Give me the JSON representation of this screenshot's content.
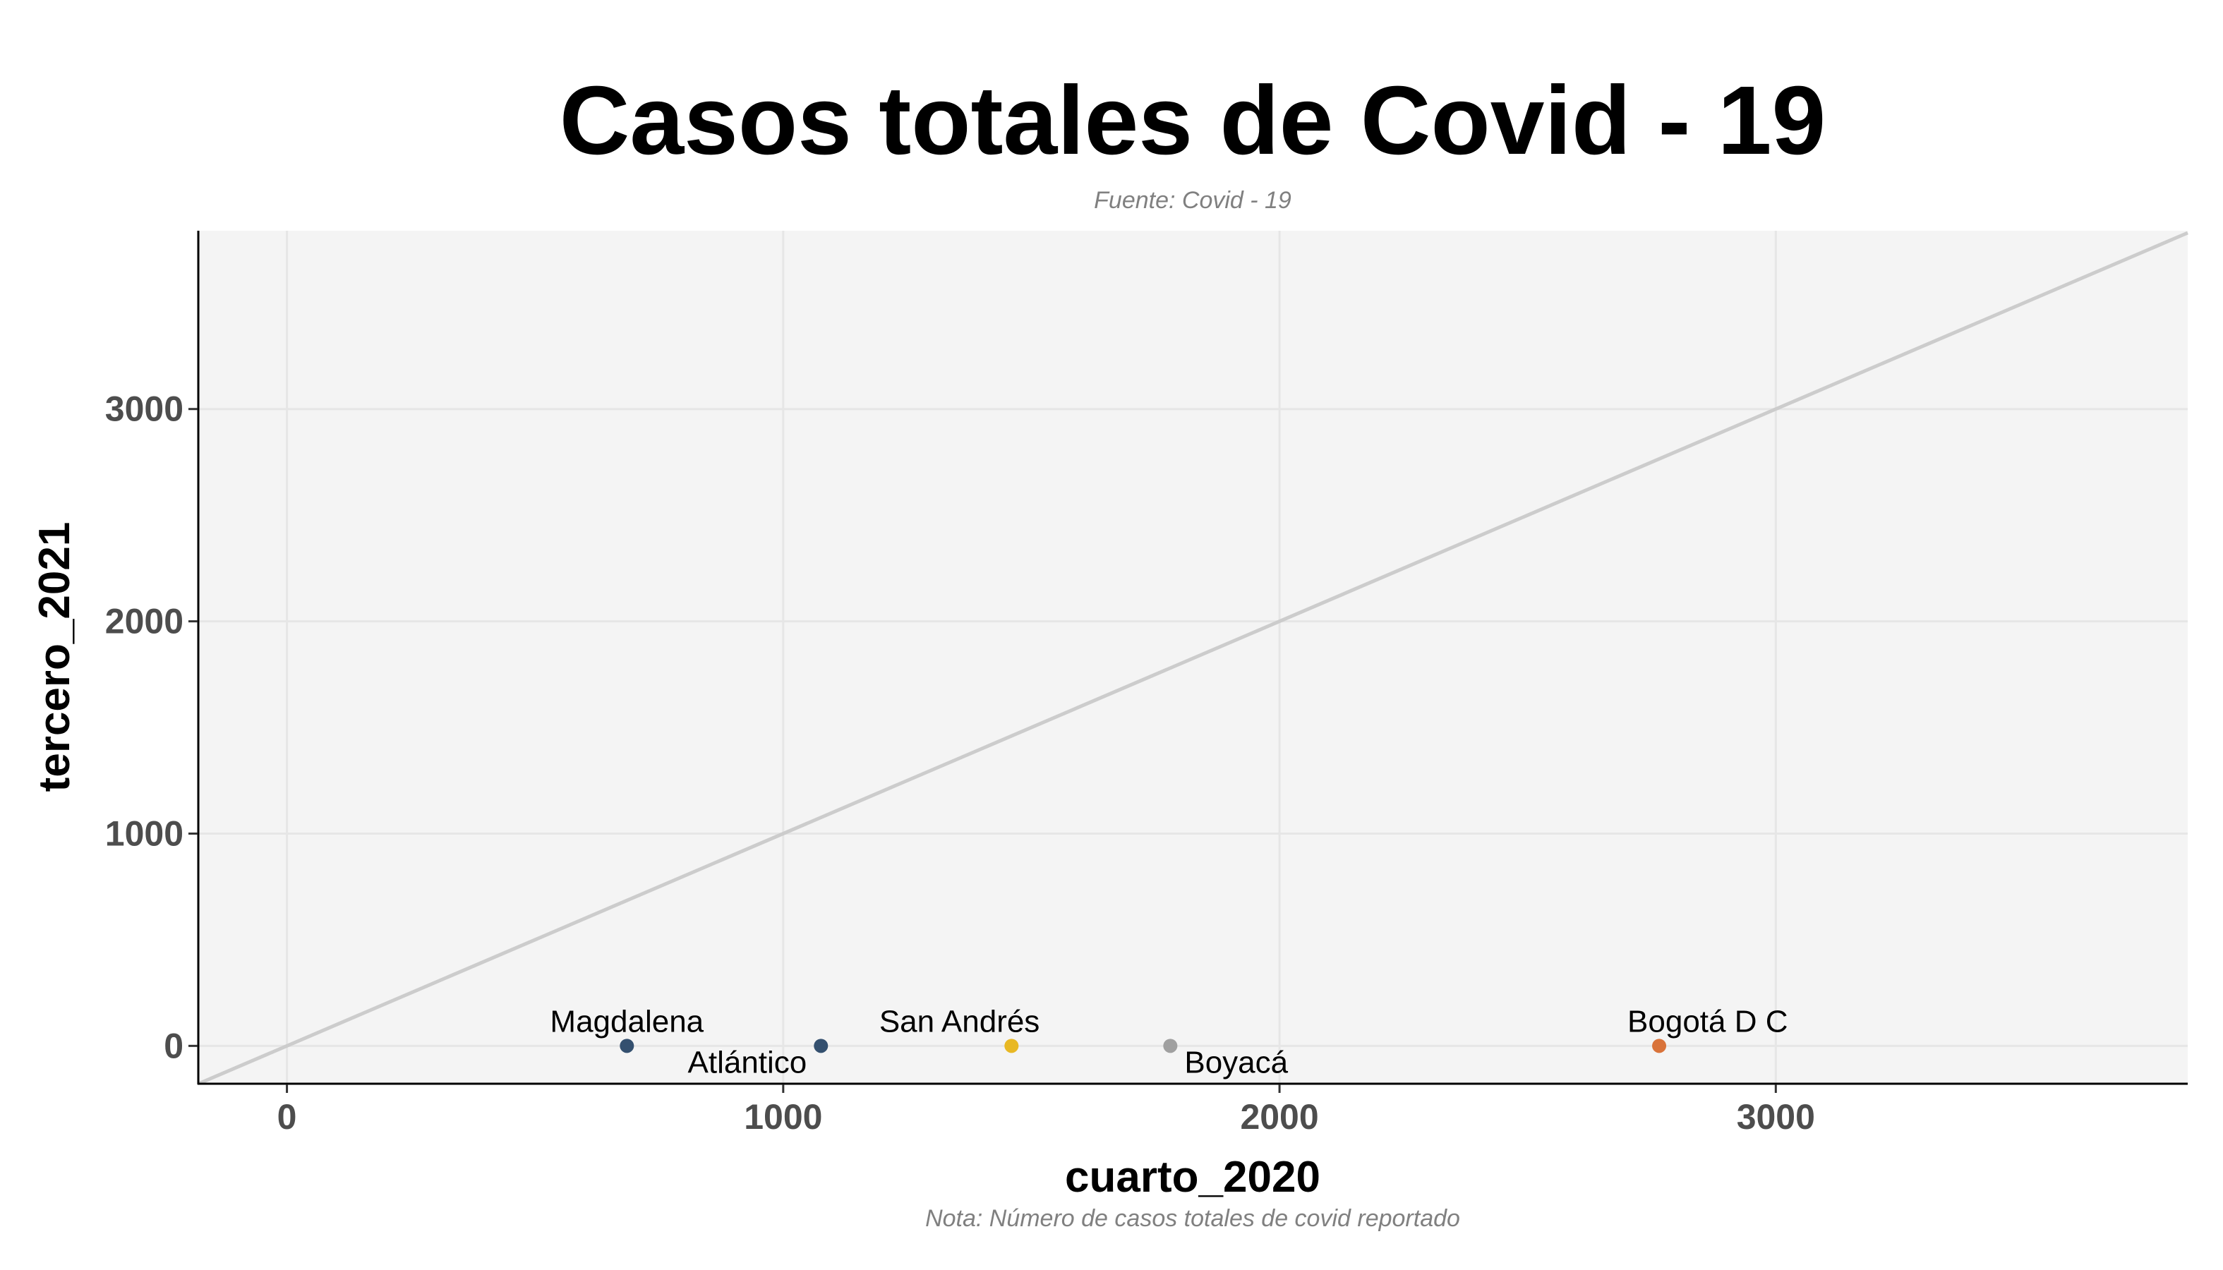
{
  "chart_data": {
    "type": "scatter",
    "title": "Casos totales de Covid - 19",
    "subtitle": "Fuente: Covid - 19",
    "caption": "Nota: Número de casos totales de covid reportado",
    "xlabel": "cuarto_2020",
    "ylabel": "tercero_2021",
    "xlim": [
      -180,
      3830
    ],
    "ylim": [
      -175,
      3840
    ],
    "xticks": [
      0,
      1000,
      2000,
      3000
    ],
    "yticks": [
      0,
      1000,
      2000,
      3000
    ],
    "grid": true,
    "background": "#f4f4f4",
    "grid_color": "#e6e6e6",
    "reference_line": {
      "slope": 1,
      "intercept": 0,
      "color": "#cccccc"
    },
    "points": [
      {
        "label": "Magdalena",
        "x": 685,
        "y": 0,
        "color": "#34506f",
        "label_side": "above"
      },
      {
        "label": "Atlántico",
        "x": 1076,
        "y": 0,
        "color": "#34506f",
        "label_side": "below-left"
      },
      {
        "label": "San Andrés",
        "x": 1460,
        "y": 0,
        "color": "#e8b824",
        "label_side": "above-left"
      },
      {
        "label": "Boyacá",
        "x": 1780,
        "y": 0,
        "color": "#a0a0a0",
        "label_side": "below-right"
      },
      {
        "label": "Bogotá D C",
        "x": 2765,
        "y": 0,
        "color": "#d9733a",
        "label_side": "above-right"
      }
    ]
  }
}
